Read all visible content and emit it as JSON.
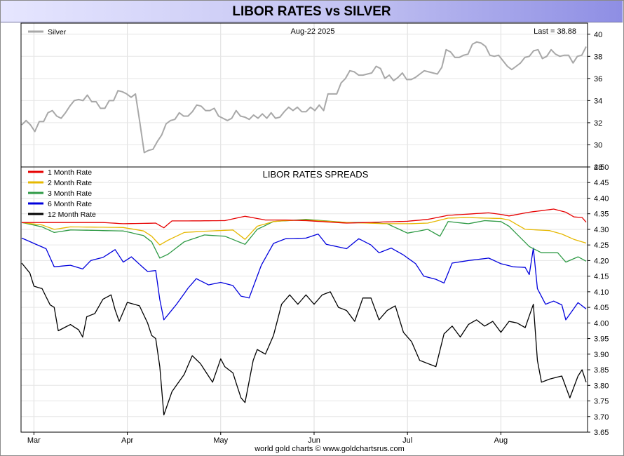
{
  "title": "LIBOR RATES vs SILVER",
  "footer": "world gold charts © www.goldchartsrus.com",
  "colors": {
    "silver": "#a8a8a8",
    "m1": "#e60000",
    "m2": "#e6b800",
    "m3": "#2e9a45",
    "m6": "#0000dd",
    "m12": "#000000"
  },
  "chart_data": [
    {
      "type": "line",
      "header_date": "Aug-22  2025",
      "last_label": "Last = 38.88",
      "ylim": [
        28,
        41
      ],
      "yticks": [
        "40",
        "38",
        "36",
        "34",
        "32",
        "30",
        "28"
      ],
      "ytick_values": [
        40,
        38,
        36,
        34,
        32,
        30,
        28
      ],
      "legend": "top-left",
      "series": [
        {
          "name": "Silver",
          "color_key": "silver",
          "values": [
            31.8,
            32.2,
            31.8,
            31.2,
            32.1,
            32.1,
            32.9,
            33.1,
            32.6,
            32.4,
            32.9,
            33.5,
            34.0,
            34.1,
            34.0,
            34.5,
            33.9,
            33.9,
            33.3,
            33.3,
            34.0,
            34.0,
            34.9,
            34.8,
            34.6,
            34.3,
            34.6,
            32.0,
            29.3,
            29.5,
            29.6,
            30.3,
            30.9,
            31.9,
            32.2,
            32.3,
            32.9,
            32.6,
            32.6,
            33.0,
            33.6,
            33.5,
            33.1,
            33.1,
            33.3,
            32.6,
            32.4,
            32.2,
            32.4,
            33.1,
            32.6,
            32.5,
            32.3,
            32.7,
            32.4,
            32.8,
            32.4,
            32.9,
            32.4,
            32.5,
            33.0,
            33.4,
            33.1,
            33.4,
            33.0,
            33.0,
            33.4,
            33.1,
            33.6,
            33.1,
            34.6,
            34.6,
            34.6,
            35.6,
            36.0,
            36.7,
            36.6,
            36.3,
            36.3,
            36.4,
            36.5,
            37.1,
            36.9,
            36.0,
            36.3,
            35.8,
            36.1,
            36.5,
            35.9,
            35.9,
            36.1,
            36.4,
            36.7,
            36.6,
            36.5,
            36.4,
            37.0,
            38.6,
            38.4,
            37.9,
            37.9,
            38.1,
            38.2,
            39.1,
            39.3,
            39.2,
            38.9,
            38.1,
            38.0,
            38.1,
            37.6,
            37.1,
            36.8,
            37.1,
            37.4,
            37.9,
            38.0,
            38.5,
            38.6,
            37.8,
            38.0,
            38.6,
            38.2,
            38.0,
            38.1,
            38.1,
            37.4,
            38.0,
            38.1,
            38.88
          ]
        }
      ]
    },
    {
      "type": "line",
      "title": "LIBOR RATES SPREADS",
      "ylim": [
        3.65,
        4.5
      ],
      "yticks": [
        "4.50",
        "4.45",
        "4.40",
        "4.35",
        "4.30",
        "4.25",
        "4.20",
        "4.15",
        "4.10",
        "4.05",
        "4.00",
        "3.95",
        "3.90",
        "3.85",
        "3.80",
        "3.75",
        "3.70",
        "3.65"
      ],
      "ytick_values": [
        4.5,
        4.45,
        4.4,
        4.35,
        4.3,
        4.25,
        4.2,
        4.15,
        4.1,
        4.05,
        4.0,
        3.95,
        3.9,
        3.85,
        3.8,
        3.75,
        3.7,
        3.65
      ],
      "x_labels": [
        "Mar",
        "Apr",
        "May",
        "Jun",
        "Jul",
        "Aug"
      ],
      "x_label_positions": [
        3,
        26,
        49,
        72,
        95,
        118
      ],
      "n_points": 140,
      "legend": "top-left",
      "series": [
        {
          "name": "1 Month Rate",
          "color_key": "m1",
          "anchors": [
            [
              0,
              4.322
            ],
            [
              10,
              4.322
            ],
            [
              20,
              4.322
            ],
            [
              25,
              4.318
            ],
            [
              33,
              4.32
            ],
            [
              35,
              4.305
            ],
            [
              37,
              4.327
            ],
            [
              40,
              4.327
            ],
            [
              50,
              4.328
            ],
            [
              55,
              4.342
            ],
            [
              60,
              4.33
            ],
            [
              65,
              4.33
            ],
            [
              70,
              4.328
            ],
            [
              80,
              4.32
            ],
            [
              95,
              4.326
            ],
            [
              100,
              4.332
            ],
            [
              105,
              4.345
            ],
            [
              115,
              4.353
            ],
            [
              118,
              4.348
            ],
            [
              120,
              4.343
            ],
            [
              125,
              4.355
            ],
            [
              131,
              4.365
            ],
            [
              134,
              4.355
            ],
            [
              136,
              4.34
            ],
            [
              138,
              4.338
            ],
            [
              139,
              4.323
            ]
          ]
        },
        {
          "name": "2 Month Rate",
          "color_key": "m2",
          "anchors": [
            [
              0,
              4.322
            ],
            [
              5,
              4.314
            ],
            [
              8,
              4.3
            ],
            [
              12,
              4.308
            ],
            [
              25,
              4.306
            ],
            [
              30,
              4.295
            ],
            [
              32,
              4.278
            ],
            [
              34,
              4.25
            ],
            [
              36,
              4.265
            ],
            [
              40,
              4.29
            ],
            [
              45,
              4.294
            ],
            [
              52,
              4.298
            ],
            [
              55,
              4.268
            ],
            [
              58,
              4.31
            ],
            [
              62,
              4.325
            ],
            [
              65,
              4.328
            ],
            [
              70,
              4.33
            ],
            [
              80,
              4.322
            ],
            [
              90,
              4.318
            ],
            [
              95,
              4.318
            ],
            [
              100,
              4.32
            ],
            [
              105,
              4.336
            ],
            [
              110,
              4.338
            ],
            [
              114,
              4.336
            ],
            [
              118,
              4.335
            ],
            [
              120,
              4.33
            ],
            [
              124,
              4.3
            ],
            [
              130,
              4.296
            ],
            [
              133,
              4.285
            ],
            [
              136,
              4.268
            ],
            [
              139,
              4.256
            ]
          ]
        },
        {
          "name": "3 Month Rate",
          "color_key": "m3",
          "anchors": [
            [
              0,
              4.322
            ],
            [
              5,
              4.308
            ],
            [
              8,
              4.29
            ],
            [
              12,
              4.298
            ],
            [
              25,
              4.295
            ],
            [
              30,
              4.28
            ],
            [
              32,
              4.26
            ],
            [
              34,
              4.208
            ],
            [
              36,
              4.22
            ],
            [
              40,
              4.26
            ],
            [
              45,
              4.282
            ],
            [
              50,
              4.278
            ],
            [
              55,
              4.252
            ],
            [
              58,
              4.3
            ],
            [
              62,
              4.325
            ],
            [
              70,
              4.332
            ],
            [
              80,
              4.322
            ],
            [
              85,
              4.322
            ],
            [
              90,
              4.318
            ],
            [
              95,
              4.288
            ],
            [
              100,
              4.3
            ],
            [
              103,
              4.278
            ],
            [
              105,
              4.325
            ],
            [
              110,
              4.318
            ],
            [
              114,
              4.328
            ],
            [
              118,
              4.325
            ],
            [
              120,
              4.31
            ],
            [
              125,
              4.245
            ],
            [
              128,
              4.225
            ],
            [
              132,
              4.225
            ],
            [
              134,
              4.195
            ],
            [
              137,
              4.212
            ],
            [
              139,
              4.198
            ]
          ]
        },
        {
          "name": "6 Month Rate",
          "color_key": "m6",
          "anchors": [
            [
              0,
              4.272
            ],
            [
              3,
              4.255
            ],
            [
              6,
              4.238
            ],
            [
              8,
              4.18
            ],
            [
              12,
              4.185
            ],
            [
              15,
              4.173
            ],
            [
              17,
              4.2
            ],
            [
              20,
              4.21
            ],
            [
              23,
              4.235
            ],
            [
              25,
              4.195
            ],
            [
              27,
              4.212
            ],
            [
              29,
              4.188
            ],
            [
              31,
              4.165
            ],
            [
              33,
              4.168
            ],
            [
              34,
              4.075
            ],
            [
              35,
              4.01
            ],
            [
              38,
              4.058
            ],
            [
              41,
              4.112
            ],
            [
              43,
              4.142
            ],
            [
              46,
              4.122
            ],
            [
              49,
              4.13
            ],
            [
              52,
              4.12
            ],
            [
              54,
              4.086
            ],
            [
              56,
              4.08
            ],
            [
              59,
              4.185
            ],
            [
              62,
              4.255
            ],
            [
              65,
              4.27
            ],
            [
              70,
              4.272
            ],
            [
              73,
              4.285
            ],
            [
              75,
              4.252
            ],
            [
              80,
              4.238
            ],
            [
              83,
              4.27
            ],
            [
              86,
              4.25
            ],
            [
              88,
              4.225
            ],
            [
              91,
              4.24
            ],
            [
              94,
              4.218
            ],
            [
              97,
              4.19
            ],
            [
              99,
              4.15
            ],
            [
              102,
              4.14
            ],
            [
              104,
              4.128
            ],
            [
              106,
              4.192
            ],
            [
              110,
              4.2
            ],
            [
              115,
              4.208
            ],
            [
              118,
              4.19
            ],
            [
              121,
              4.18
            ],
            [
              124,
              4.178
            ],
            [
              125,
              4.155
            ],
            [
              126,
              4.24
            ],
            [
              127,
              4.11
            ],
            [
              129,
              4.06
            ],
            [
              131,
              4.07
            ],
            [
              133,
              4.058
            ],
            [
              134,
              4.01
            ],
            [
              137,
              4.065
            ],
            [
              139,
              4.045
            ]
          ]
        },
        {
          "name": "12 Month Rate",
          "color_key": "m12",
          "anchors": [
            [
              0,
              4.192
            ],
            [
              2,
              4.16
            ],
            [
              3,
              4.118
            ],
            [
              5,
              4.11
            ],
            [
              7,
              4.058
            ],
            [
              8,
              4.05
            ],
            [
              9,
              3.975
            ],
            [
              12,
              3.995
            ],
            [
              14,
              3.978
            ],
            [
              15,
              3.955
            ],
            [
              16,
              4.02
            ],
            [
              18,
              4.03
            ],
            [
              20,
              4.076
            ],
            [
              22,
              4.09
            ],
            [
              23,
              4.042
            ],
            [
              24,
              4.005
            ],
            [
              26,
              4.066
            ],
            [
              29,
              4.055
            ],
            [
              31,
              4.0
            ],
            [
              32,
              3.96
            ],
            [
              33,
              3.95
            ],
            [
              34,
              3.86
            ],
            [
              35,
              3.705
            ],
            [
              37,
              3.78
            ],
            [
              40,
              3.835
            ],
            [
              42,
              3.895
            ],
            [
              44,
              3.87
            ],
            [
              45,
              3.85
            ],
            [
              47,
              3.81
            ],
            [
              49,
              3.885
            ],
            [
              50,
              3.86
            ],
            [
              52,
              3.84
            ],
            [
              54,
              3.76
            ],
            [
              55,
              3.745
            ],
            [
              57,
              3.88
            ],
            [
              58,
              3.915
            ],
            [
              60,
              3.9
            ],
            [
              62,
              3.96
            ],
            [
              64,
              4.06
            ],
            [
              66,
              4.09
            ],
            [
              68,
              4.06
            ],
            [
              70,
              4.09
            ],
            [
              72,
              4.06
            ],
            [
              74,
              4.09
            ],
            [
              76,
              4.1
            ],
            [
              78,
              4.05
            ],
            [
              80,
              4.04
            ],
            [
              82,
              4.005
            ],
            [
              84,
              4.08
            ],
            [
              86,
              4.08
            ],
            [
              88,
              4.01
            ],
            [
              90,
              4.04
            ],
            [
              92,
              4.055
            ],
            [
              94,
              3.97
            ],
            [
              96,
              3.94
            ],
            [
              98,
              3.88
            ],
            [
              100,
              3.87
            ],
            [
              102,
              3.86
            ],
            [
              104,
              3.965
            ],
            [
              106,
              3.99
            ],
            [
              108,
              3.955
            ],
            [
              110,
              3.995
            ],
            [
              112,
              4.01
            ],
            [
              114,
              3.99
            ],
            [
              116,
              4.005
            ],
            [
              118,
              3.97
            ],
            [
              120,
              4.005
            ],
            [
              122,
              4.0
            ],
            [
              124,
              3.985
            ],
            [
              126,
              4.06
            ],
            [
              127,
              3.88
            ],
            [
              128,
              3.81
            ],
            [
              130,
              3.82
            ],
            [
              133,
              3.83
            ],
            [
              135,
              3.76
            ],
            [
              137,
              3.83
            ],
            [
              138,
              3.85
            ],
            [
              139,
              3.81
            ]
          ]
        }
      ]
    }
  ]
}
